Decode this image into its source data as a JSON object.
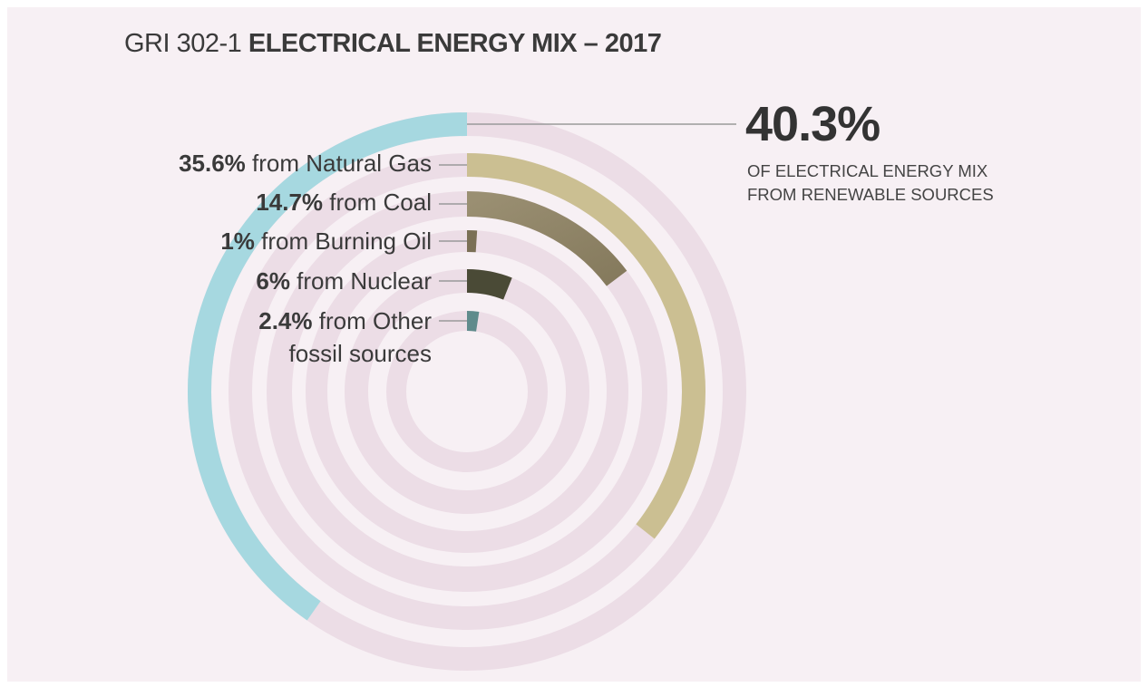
{
  "title": {
    "prefix": "GRI 302-1",
    "main": "ELECTRICAL ENERGY MIX – 2017"
  },
  "callout": {
    "value": "40.3%",
    "line1": "OF ELECTRICAL ENERGY MIX",
    "line2": "FROM RENEWABLE SOURCES"
  },
  "colors": {
    "background": "#f7f0f4",
    "track": "#ecdde6",
    "renewables": "#a6d8e0",
    "natural_gas": "#cbbf92",
    "coal_start": "#9a8f72",
    "coal_end": "#8a7e60",
    "burning_oil": "#7a6f55",
    "nuclear": "#4a4a36",
    "other_fossil": "#5f8b8c",
    "leader": "#9a9a9a"
  },
  "labels": [
    {
      "pct": "35.6%",
      "desc": "from Natural Gas"
    },
    {
      "pct": "14.7%",
      "desc": "from Coal"
    },
    {
      "pct": "1%",
      "desc": "from Burning Oil"
    },
    {
      "pct": "6%",
      "desc": "from Nuclear"
    },
    {
      "pct": "2.4%",
      "desc": "from Other",
      "desc2": "fossil sources"
    }
  ],
  "chart_data": {
    "type": "radial-bar",
    "unit": "%",
    "series": [
      {
        "name": "Renewable sources",
        "value": 40.3,
        "color": "#a6d8e0",
        "direction": "counterclockwise"
      },
      {
        "name": "Natural Gas",
        "value": 35.6,
        "color": "#cbbf92"
      },
      {
        "name": "Coal",
        "value": 14.7,
        "color": "#8f8468"
      },
      {
        "name": "Burning Oil",
        "value": 1,
        "color": "#7a6f55"
      },
      {
        "name": "Nuclear",
        "value": 6,
        "color": "#4a4a36"
      },
      {
        "name": "Other fossil sources",
        "value": 2.4,
        "color": "#5f8b8c"
      }
    ]
  }
}
